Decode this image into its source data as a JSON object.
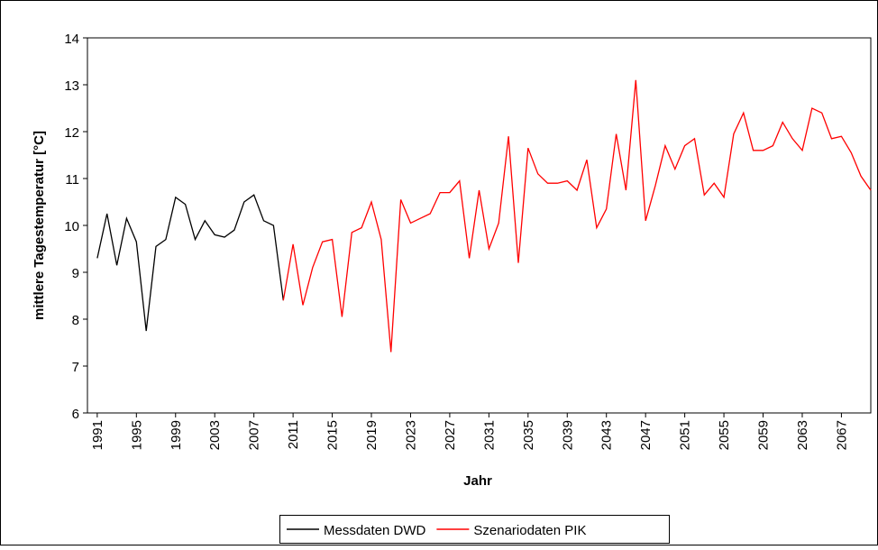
{
  "chart_data": {
    "type": "line",
    "x_label": "Jahr",
    "y_label": "mittlere Tagestemperatur [°C]",
    "x": [
      1991,
      1992,
      1993,
      1994,
      1995,
      1996,
      1997,
      1998,
      1999,
      2000,
      2001,
      2002,
      2003,
      2004,
      2005,
      2006,
      2007,
      2008,
      2009,
      2010,
      2011,
      2012,
      2013,
      2014,
      2015,
      2016,
      2017,
      2018,
      2019,
      2020,
      2021,
      2022,
      2023,
      2024,
      2025,
      2026,
      2027,
      2028,
      2029,
      2030,
      2031,
      2032,
      2033,
      2034,
      2035,
      2036,
      2037,
      2038,
      2039,
      2040,
      2041,
      2042,
      2043,
      2044,
      2045,
      2046,
      2047,
      2048,
      2049,
      2050,
      2051,
      2052,
      2053,
      2054,
      2055,
      2056,
      2057,
      2058,
      2059,
      2060,
      2061,
      2062,
      2063,
      2064,
      2065,
      2066,
      2067,
      2068,
      2069,
      2070
    ],
    "series": [
      {
        "name": "Messdaten DWD",
        "color": "#000000",
        "values": [
          9.3,
          10.25,
          9.15,
          10.15,
          9.65,
          7.75,
          9.55,
          9.7,
          10.6,
          10.45,
          9.7,
          10.1,
          9.8,
          9.75,
          9.9,
          10.5,
          10.65,
          10.1,
          10.0,
          8.4,
          null,
          null,
          null,
          null,
          null,
          null,
          null,
          null,
          null,
          null,
          null,
          null,
          null,
          null,
          null,
          null,
          null,
          null,
          null,
          null,
          null,
          null,
          null,
          null,
          null,
          null,
          null,
          null,
          null,
          null,
          null,
          null,
          null,
          null,
          null,
          null,
          null,
          null,
          null,
          null,
          null,
          null,
          null,
          null,
          null,
          null,
          null,
          null,
          null,
          null,
          null,
          null,
          null,
          null,
          null,
          null,
          null,
          null,
          null,
          null
        ]
      },
      {
        "name": "Szenariodaten PIK",
        "color": "#ff0000",
        "values": [
          null,
          null,
          null,
          null,
          null,
          null,
          null,
          null,
          null,
          null,
          null,
          null,
          null,
          null,
          null,
          null,
          null,
          null,
          null,
          8.4,
          9.6,
          8.3,
          9.1,
          9.65,
          9.7,
          8.05,
          9.85,
          9.95,
          10.5,
          9.7,
          7.3,
          10.55,
          10.05,
          10.15,
          10.25,
          10.7,
          10.7,
          10.95,
          9.3,
          10.75,
          9.5,
          10.05,
          11.9,
          9.2,
          11.65,
          11.1,
          10.9,
          10.9,
          10.95,
          10.75,
          11.4,
          9.95,
          10.35,
          11.95,
          10.75,
          13.1,
          10.1,
          10.85,
          11.7,
          11.2,
          11.7,
          11.85,
          10.65,
          10.9,
          10.6,
          11.95,
          12.4,
          11.6,
          11.6,
          11.7,
          12.2,
          11.85,
          11.6,
          12.5,
          12.4,
          11.85,
          11.9,
          11.55,
          11.05,
          10.75
        ]
      }
    ],
    "xlim": [
      1990,
      2070
    ],
    "xticks": [
      1991,
      1995,
      1999,
      2003,
      2007,
      2011,
      2015,
      2019,
      2023,
      2027,
      2031,
      2035,
      2039,
      2043,
      2047,
      2051,
      2055,
      2059,
      2063,
      2067
    ],
    "ylim": [
      6,
      14
    ],
    "yticks": [
      6,
      7,
      8,
      9,
      10,
      11,
      12,
      13,
      14
    ],
    "legend": "bottom"
  }
}
